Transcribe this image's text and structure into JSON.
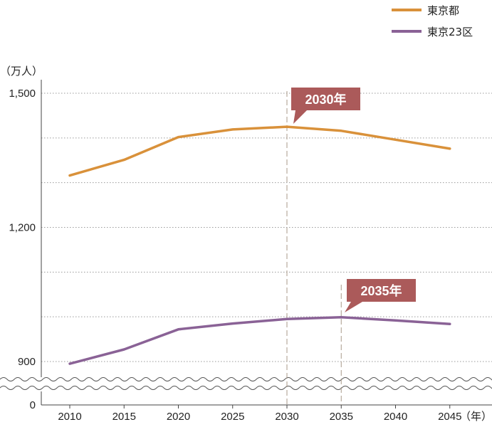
{
  "chart_data": {
    "type": "line",
    "x": [
      2010,
      2015,
      2020,
      2025,
      2030,
      2035,
      2040,
      2045
    ],
    "series": [
      {
        "name": "東京都",
        "color": "#d9913a",
        "values": [
          1316,
          1351,
          1402,
          1419,
          1425,
          1416,
          1396,
          1376
        ]
      },
      {
        "name": "東京23区",
        "color": "#8a6296",
        "values": [
          895,
          927,
          972,
          985,
          995,
          999,
          992,
          984
        ]
      }
    ],
    "ylabel": "（万人）",
    "xunit": "（年）",
    "yticks": [
      "1,500",
      "1,200",
      "900",
      "0"
    ],
    "ytick_values": [
      1500,
      1200,
      900,
      0
    ],
    "xticks": [
      "2010",
      "2015",
      "2020",
      "2025",
      "2030",
      "2035",
      "2040",
      "2045"
    ],
    "ylim": [
      900,
      1500
    ],
    "axis_break": true,
    "grid": "horizontal dotted",
    "legend_position": "top-right",
    "annotations": [
      {
        "text": "2030年",
        "x": 2030,
        "series": "東京都",
        "fill": "#ab5a5a"
      },
      {
        "text": "2035年",
        "x": 2035,
        "series": "東京23区",
        "fill": "#ab5a5a"
      }
    ]
  }
}
